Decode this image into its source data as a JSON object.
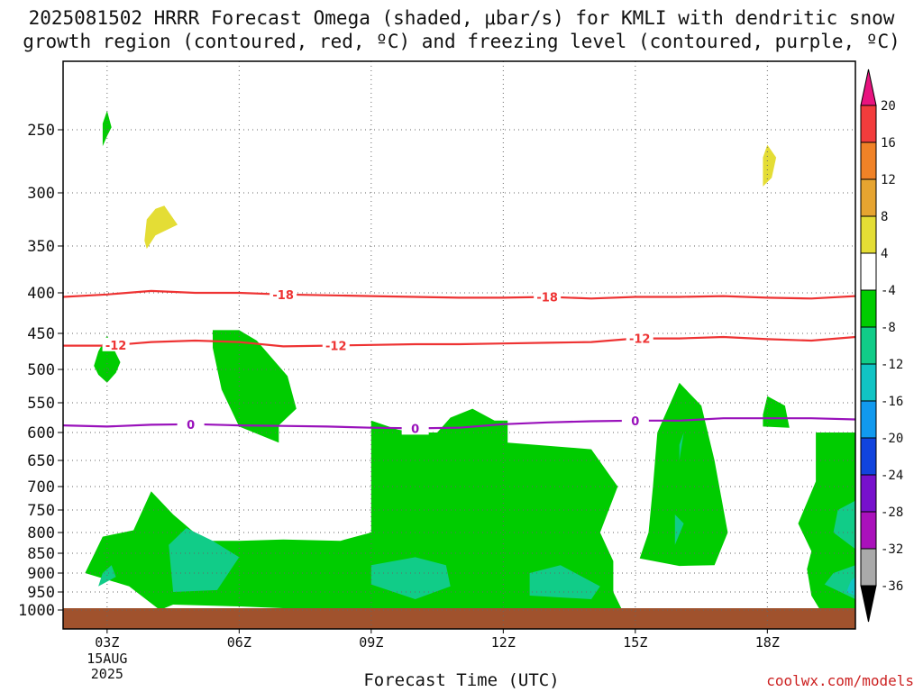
{
  "title_line1": "2025081502 HRRR Forecast Omega (shaded, μbar/s) for KMLI with dendritic snow",
  "title_line2": "growth region (contoured, red, ºC) and freezing level (contoured, purple, ºC)",
  "x_axis_title": "Forecast Time (UTC)",
  "credit": "coolwx.com/models",
  "chart_data": {
    "type": "time-height cross section",
    "x_ticks": [
      "03Z",
      "06Z",
      "09Z",
      "12Z",
      "15Z",
      "18Z"
    ],
    "x_date_under_first_tick": [
      "15AUG",
      "2025"
    ],
    "y_ticks": [
      250,
      300,
      350,
      400,
      450,
      500,
      550,
      600,
      650,
      700,
      750,
      800,
      850,
      900,
      950,
      1000
    ],
    "y_axis": "pressure (hPa), inverted",
    "x_range_hours": [
      2,
      20
    ],
    "grid": true,
    "colorbar": {
      "labels": [
        20,
        16,
        12,
        8,
        4,
        -4,
        -8,
        -12,
        -16,
        -20,
        -24,
        -28,
        -32,
        -36
      ],
      "colors": [
        "#e8137f",
        "#f23c3c",
        "#f08227",
        "#e6a430",
        "#e4dd35",
        "#ffffff",
        "#00cc00",
        "#11cc88",
        "#11c4c4",
        "#1199ee",
        "#1144dd",
        "#7711cc",
        "#aa11bb",
        "#aaaaaa",
        "#000000"
      ],
      "extends": "both"
    },
    "contours": [
      {
        "label": "-18",
        "color": "#ee3333",
        "points": [
          [
            2,
            405
          ],
          [
            3,
            402
          ],
          [
            4,
            398
          ],
          [
            5,
            400
          ],
          [
            6,
            400
          ],
          [
            7,
            402
          ],
          [
            8,
            403
          ],
          [
            9,
            404
          ],
          [
            10,
            405
          ],
          [
            11,
            406
          ],
          [
            12,
            406
          ],
          [
            13,
            405
          ],
          [
            14,
            407
          ],
          [
            15,
            405
          ],
          [
            16,
            405
          ],
          [
            17,
            404
          ],
          [
            18,
            406
          ],
          [
            19,
            407
          ],
          [
            20,
            404
          ]
        ]
      },
      {
        "label": "-12",
        "color": "#ee3333",
        "points": [
          [
            2,
            467
          ],
          [
            3,
            467
          ],
          [
            4,
            462
          ],
          [
            5,
            460
          ],
          [
            6,
            462
          ],
          [
            7,
            468
          ],
          [
            8,
            467
          ],
          [
            9,
            466
          ],
          [
            10,
            465
          ],
          [
            11,
            465
          ],
          [
            12,
            464
          ],
          [
            13,
            463
          ],
          [
            14,
            462
          ],
          [
            15,
            457
          ],
          [
            16,
            457
          ],
          [
            17,
            455
          ],
          [
            18,
            458
          ],
          [
            19,
            460
          ],
          [
            20,
            455
          ]
        ]
      },
      {
        "label": "0",
        "color": "#9911bb",
        "points": [
          [
            2,
            588
          ],
          [
            3,
            590
          ],
          [
            4,
            587
          ],
          [
            5,
            586
          ],
          [
            6,
            588
          ],
          [
            7,
            589
          ],
          [
            8,
            590
          ],
          [
            9,
            592
          ],
          [
            10,
            593
          ],
          [
            11,
            592
          ],
          [
            12,
            586
          ],
          [
            13,
            583
          ],
          [
            14,
            581
          ],
          [
            15,
            580
          ],
          [
            16,
            580
          ],
          [
            17,
            576
          ],
          [
            18,
            576
          ],
          [
            19,
            576
          ],
          [
            20,
            578
          ]
        ]
      }
    ],
    "contour_label_positions": [
      {
        "label": "-18",
        "x": 7.0
      },
      {
        "label": "-18",
        "x": 13.0
      },
      {
        "label": "-12",
        "x": 3.2
      },
      {
        "label": "-12",
        "x": 8.2
      },
      {
        "label": "-12",
        "x": 15.1
      },
      {
        "label": "0",
        "x": 4.9
      },
      {
        "label": "0",
        "x": 10.0
      },
      {
        "label": "0",
        "x": 15.0
      }
    ],
    "shaded_regions": [
      {
        "bin": "4 to 8",
        "color": "#e4dd35",
        "points": [
          [
            3.9,
            353
          ],
          [
            4.1,
            340
          ],
          [
            4.6,
            330
          ],
          [
            4.3,
            312
          ],
          [
            4.1,
            315
          ],
          [
            3.9,
            325
          ],
          [
            3.85,
            345
          ]
        ]
      },
      {
        "bin": "4 to 8",
        "color": "#e4dd35",
        "points": [
          [
            17.9,
            295
          ],
          [
            18.1,
            288
          ],
          [
            18.2,
            272
          ],
          [
            18.0,
            262
          ],
          [
            17.9,
            272
          ]
        ]
      },
      {
        "bin": "-4 to -8",
        "color": "#00cc00",
        "points": [
          [
            2.9,
            263
          ],
          [
            3.0,
            255
          ],
          [
            3.1,
            248
          ],
          [
            3.0,
            235
          ],
          [
            2.9,
            245
          ]
        ]
      },
      {
        "bin": "-4 to -8",
        "color": "#00cc00",
        "points": [
          [
            2.7,
            495
          ],
          [
            2.8,
            475
          ],
          [
            3.0,
            453
          ],
          [
            3.3,
            490
          ],
          [
            3.2,
            505
          ],
          [
            3.0,
            520
          ],
          [
            2.8,
            508
          ]
        ]
      },
      {
        "bin": "-4 to -8",
        "color": "#00cc00",
        "points": [
          [
            5.4,
            446
          ],
          [
            5.4,
            470
          ],
          [
            5.6,
            530
          ],
          [
            6.0,
            590
          ],
          [
            6.9,
            618
          ],
          [
            6.9,
            588
          ],
          [
            7.3,
            560
          ],
          [
            7.1,
            510
          ],
          [
            6.4,
            460
          ],
          [
            6.0,
            446
          ]
        ]
      },
      {
        "bin": "-4 to -8",
        "color": "#00cc00",
        "points": [
          [
            2.5,
            900
          ],
          [
            3.5,
            935
          ],
          [
            4.2,
            1000
          ],
          [
            4.5,
            985
          ],
          [
            6.0,
            990
          ],
          [
            8.0,
            1000
          ],
          [
            14.7,
            1000
          ],
          [
            14.5,
            950
          ],
          [
            14.5,
            870
          ],
          [
            14.2,
            800
          ],
          [
            14.6,
            700
          ],
          [
            14.0,
            630
          ],
          [
            12.1,
            618
          ],
          [
            12.1,
            580
          ],
          [
            11.8,
            580
          ],
          [
            11.3,
            560
          ],
          [
            10.8,
            575
          ],
          [
            10.5,
            600
          ],
          [
            10.0,
            600
          ],
          [
            9.6,
            595
          ],
          [
            9.0,
            580
          ],
          [
            9.0,
            800
          ],
          [
            8.3,
            820
          ],
          [
            7.0,
            817
          ],
          [
            6.0,
            820
          ],
          [
            5.2,
            820
          ],
          [
            4.5,
            760
          ],
          [
            4.0,
            710
          ],
          [
            3.6,
            795
          ],
          [
            2.9,
            810
          ]
        ]
      },
      {
        "bin": "-4 to -8",
        "color": "#00cc00",
        "points": [
          [
            15.1,
            863
          ],
          [
            16.0,
            882
          ],
          [
            16.8,
            880
          ],
          [
            17.1,
            800
          ],
          [
            16.8,
            650
          ],
          [
            16.5,
            555
          ],
          [
            16.0,
            520
          ],
          [
            15.5,
            600
          ],
          [
            15.4,
            700
          ],
          [
            15.3,
            800
          ]
        ]
      },
      {
        "bin": "-4 to -8",
        "color": "#00cc00",
        "points": [
          [
            17.9,
            590
          ],
          [
            18.5,
            592
          ],
          [
            18.4,
            555
          ],
          [
            18.0,
            540
          ],
          [
            17.9,
            570
          ]
        ]
      },
      {
        "bin": "-4 to -8",
        "color": "#00cc00",
        "points": [
          [
            19.2,
            1000
          ],
          [
            20.0,
            1000
          ],
          [
            20.0,
            600
          ],
          [
            19.1,
            600
          ],
          [
            19.1,
            690
          ],
          [
            18.7,
            780
          ],
          [
            19.0,
            845
          ],
          [
            18.9,
            890
          ],
          [
            19.0,
            960
          ]
        ]
      },
      {
        "bin": "-8 to -12",
        "color": "#11cc88",
        "points": [
          [
            2.8,
            935
          ],
          [
            2.9,
            900
          ],
          [
            3.1,
            880
          ],
          [
            3.2,
            910
          ]
        ]
      },
      {
        "bin": "-8 to -12",
        "color": "#11cc88",
        "points": [
          [
            4.4,
            830
          ],
          [
            4.8,
            790
          ],
          [
            5.4,
            820
          ],
          [
            6.0,
            860
          ],
          [
            5.5,
            945
          ],
          [
            4.5,
            950
          ]
        ]
      },
      {
        "bin": "-8 to -12",
        "color": "#11cc88",
        "points": [
          [
            9.0,
            930
          ],
          [
            10.0,
            970
          ],
          [
            10.8,
            935
          ],
          [
            10.7,
            880
          ],
          [
            10.0,
            860
          ],
          [
            9.0,
            880
          ]
        ]
      },
      {
        "bin": "-8 to -12",
        "color": "#11cc88",
        "points": [
          [
            12.6,
            960
          ],
          [
            14.0,
            970
          ],
          [
            14.2,
            935
          ],
          [
            13.3,
            880
          ],
          [
            12.6,
            900
          ]
        ]
      },
      {
        "bin": "-8 to -12",
        "color": "#11cc88",
        "points": [
          [
            16.0,
            622
          ],
          [
            16.1,
            600
          ],
          [
            16.0,
            650
          ]
        ]
      },
      {
        "bin": "-8 to -12",
        "color": "#11cc88",
        "points": [
          [
            15.9,
            830
          ],
          [
            16.1,
            780
          ],
          [
            15.9,
            760
          ]
        ]
      },
      {
        "bin": "-8 to -12",
        "color": "#11cc88",
        "points": [
          [
            19.5,
            800
          ],
          [
            20.0,
            840
          ],
          [
            20.0,
            730
          ],
          [
            19.6,
            750
          ]
        ]
      },
      {
        "bin": "-8 to -12",
        "color": "#11cc88",
        "points": [
          [
            19.3,
            930
          ],
          [
            20.0,
            970
          ],
          [
            20.0,
            880
          ],
          [
            19.5,
            900
          ]
        ]
      },
      {
        "bin": "-12 to -16",
        "color": "#11c4c4",
        "points": [
          [
            19.8,
            950
          ],
          [
            20.0,
            960
          ],
          [
            20.0,
            910
          ],
          [
            19.9,
            920
          ]
        ]
      }
    ],
    "surface_fill": {
      "color": "#a0522d",
      "from_hPa": 1000
    }
  }
}
